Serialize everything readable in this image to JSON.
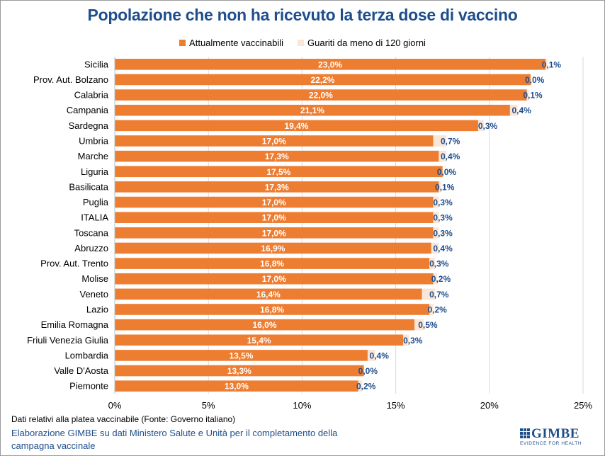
{
  "colors": {
    "title": "#1f4e8c",
    "vaccinabili": "#ed7d31",
    "guariti": "#fbe5d6",
    "guariti_label": "#1f4e8c",
    "gridline": "#d9d9d9"
  },
  "chart_data": {
    "type": "bar",
    "orientation": "horizontal",
    "stacked": true,
    "title": "Popolazione che non ha ricevuto la terza dose di vaccino",
    "xlim": [
      0,
      25
    ],
    "x_ticks": [
      "0%",
      "5%",
      "10%",
      "15%",
      "20%",
      "25%"
    ],
    "grid": "vertical",
    "legend_position": "top",
    "categories": [
      "Sicilia",
      "Prov. Aut. Bolzano",
      "Calabria",
      "Campania",
      "Sardegna",
      "Umbria",
      "Marche",
      "Liguria",
      "Basilicata",
      "Puglia",
      "ITALIA",
      "Toscana",
      "Abruzzo",
      "Prov. Aut. Trento",
      "Molise",
      "Veneto",
      "Lazio",
      "Emilia Romagna",
      "Friuli Venezia Giulia",
      "Lombardia",
      "Valle D'Aosta",
      "Piemonte"
    ],
    "series": [
      {
        "name": "Attualmente vaccinabili",
        "values": [
          23.0,
          22.2,
          22.0,
          21.1,
          19.4,
          17.0,
          17.3,
          17.5,
          17.3,
          17.0,
          17.0,
          17.0,
          16.9,
          16.8,
          17.0,
          16.4,
          16.8,
          16.0,
          15.4,
          13.5,
          13.3,
          13.0
        ],
        "labels": [
          "23,0%",
          "22,2%",
          "22,0%",
          "21,1%",
          "19,4%",
          "17,0%",
          "17,3%",
          "17,5%",
          "17,3%",
          "17,0%",
          "17,0%",
          "17,0%",
          "16,9%",
          "16,8%",
          "17,0%",
          "16,4%",
          "16,8%",
          "16,0%",
          "15,4%",
          "13,5%",
          "13,3%",
          "13,0%"
        ]
      },
      {
        "name": "Guariti da meno di 120 giorni",
        "values": [
          0.1,
          0.0,
          0.1,
          0.4,
          0.3,
          0.7,
          0.4,
          0.0,
          0.1,
          0.3,
          0.3,
          0.3,
          0.4,
          0.3,
          0.2,
          0.7,
          0.2,
          0.5,
          0.3,
          0.4,
          0.0,
          0.2
        ],
        "labels": [
          "0,1%",
          "0,0%",
          "0,1%",
          "0,4%",
          "0,3%",
          "0,7%",
          "0,4%",
          "0,0%",
          "0,1%",
          "0,3%",
          "0,3%",
          "0,3%",
          "0,4%",
          "0,3%",
          "0,2%",
          "0,7%",
          "0,2%",
          "0,5%",
          "0,3%",
          "0,4%",
          "0,0%",
          "0,2%"
        ]
      }
    ]
  },
  "footer": {
    "note": "Dati relativi alla platea vaccinabile (Fonte: Governo italiano)",
    "credit": "Elaborazione GIMBE su dati Ministero Salute e Unità per il completamento della campagna vaccinale",
    "logo_name": "GIMBE",
    "logo_sub": "EVIDENCE FOR HEALTH"
  }
}
